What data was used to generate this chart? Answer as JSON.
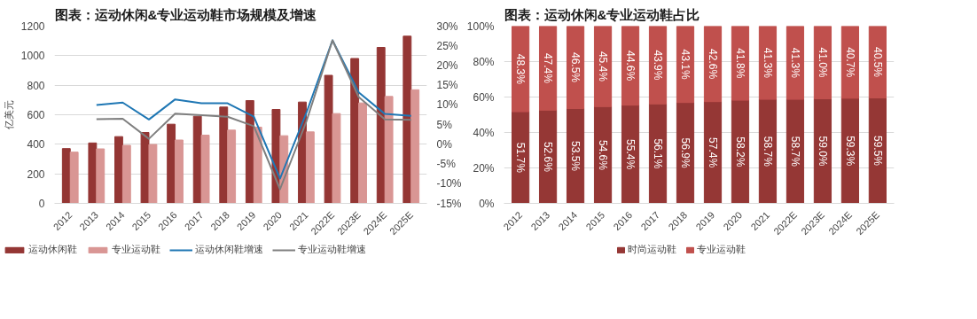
{
  "chart_data": [
    {
      "type": "bar",
      "title": "图表：运动休闲&专业运动鞋市场规模及增速",
      "ylabel": "亿美元",
      "categories": [
        "2012",
        "2013",
        "2014",
        "2015",
        "2016",
        "2017",
        "2018",
        "2019",
        "2020",
        "2021",
        "2022E",
        "2023E",
        "2024E",
        "2025E"
      ],
      "series": [
        {
          "name": "运动休闲鞋",
          "type": "bar",
          "color": "#943634",
          "values": [
            371,
            409,
            452,
            480,
            536,
            590,
            652,
            696,
            636,
            686,
            867,
            981,
            1056,
            1132
          ]
        },
        {
          "name": "专业运动鞋",
          "type": "bar",
          "color": "#d99694",
          "values": [
            347,
            369,
            393,
            399,
            429,
            462,
            496,
            516,
            458,
            484,
            608,
            680,
            724,
            769
          ]
        },
        {
          "name": "运动休闲鞋增速",
          "type": "line",
          "axis": "y2",
          "color": "#1f77b4",
          "values": [
            null,
            10.0,
            10.6,
            6.3,
            11.4,
            10.4,
            10.4,
            7.0,
            -8.7,
            7.9,
            26.4,
            13.2,
            7.7,
            7.2
          ]
        },
        {
          "name": "专业运动鞋增速",
          "type": "line",
          "axis": "y2",
          "color": "#7f7f7f",
          "values": [
            null,
            6.4,
            6.5,
            1.4,
            7.8,
            7.4,
            7.0,
            4.6,
            -11.4,
            5.7,
            26.4,
            12.0,
            6.3,
            6.2
          ]
        }
      ],
      "ylim": [
        0,
        1200
      ],
      "yticks": [
        0,
        200,
        400,
        600,
        800,
        1000,
        1200
      ],
      "y2lim": [
        -15,
        30
      ],
      "y2ticks": [
        {
          "value": -15,
          "label": "-15%"
        },
        {
          "value": -10,
          "label": "-10%"
        },
        {
          "value": -5,
          "label": "-5%"
        },
        {
          "value": 0,
          "label": "0%"
        },
        {
          "value": 5,
          "label": "5%"
        },
        {
          "value": 10,
          "label": "10%"
        },
        {
          "value": 15,
          "label": "15%"
        },
        {
          "value": 20,
          "label": "20%"
        },
        {
          "value": 25,
          "label": "25%"
        },
        {
          "value": 30,
          "label": "30%"
        }
      ],
      "grid": "y",
      "legend": "bottom"
    },
    {
      "type": "bar",
      "title": "图表：运动休闲&专业运动鞋占比",
      "stacked": true,
      "categories": [
        "2012",
        "2013",
        "2014",
        "2015",
        "2016",
        "2017",
        "2018",
        "2019",
        "2020",
        "2021",
        "2022E",
        "2023E",
        "2024E",
        "2025E"
      ],
      "series": [
        {
          "name": "时尚运动鞋",
          "color": "#953735",
          "values": [
            51.7,
            52.6,
            53.5,
            54.6,
            55.4,
            56.1,
            56.9,
            57.4,
            58.2,
            58.7,
            58.7,
            59.0,
            59.3,
            59.5
          ],
          "value_labels": [
            "51.7%",
            "52.6%",
            "53.5%",
            "54.6%",
            "55.4%",
            "56.1%",
            "56.9%",
            "57.4%",
            "58.2%",
            "58.7%",
            "58.7%",
            "59.0%",
            "59.3%",
            "59.5%"
          ]
        },
        {
          "name": "专业运动鞋",
          "color": "#c0504d",
          "values": [
            48.3,
            47.4,
            46.5,
            45.4,
            44.6,
            43.9,
            43.1,
            42.6,
            41.8,
            41.3,
            41.3,
            41.0,
            40.7,
            40.5
          ],
          "value_labels": [
            "48.3%",
            "47.4%",
            "46.5%",
            "45.4%",
            "44.6%",
            "43.9%",
            "43.1%",
            "42.6%",
            "41.8%",
            "41.3%",
            "41.3%",
            "41.0%",
            "40.7%",
            "40.5%"
          ]
        }
      ],
      "ylim": [
        0,
        100
      ],
      "yticks": [
        {
          "value": 0,
          "label": "0%"
        },
        {
          "value": 20,
          "label": "20%"
        },
        {
          "value": 40,
          "label": "40%"
        },
        {
          "value": 60,
          "label": "60%"
        },
        {
          "value": 80,
          "label": "80%"
        },
        {
          "value": 100,
          "label": "100%"
        }
      ],
      "grid": "y",
      "legend": "bottom"
    }
  ]
}
